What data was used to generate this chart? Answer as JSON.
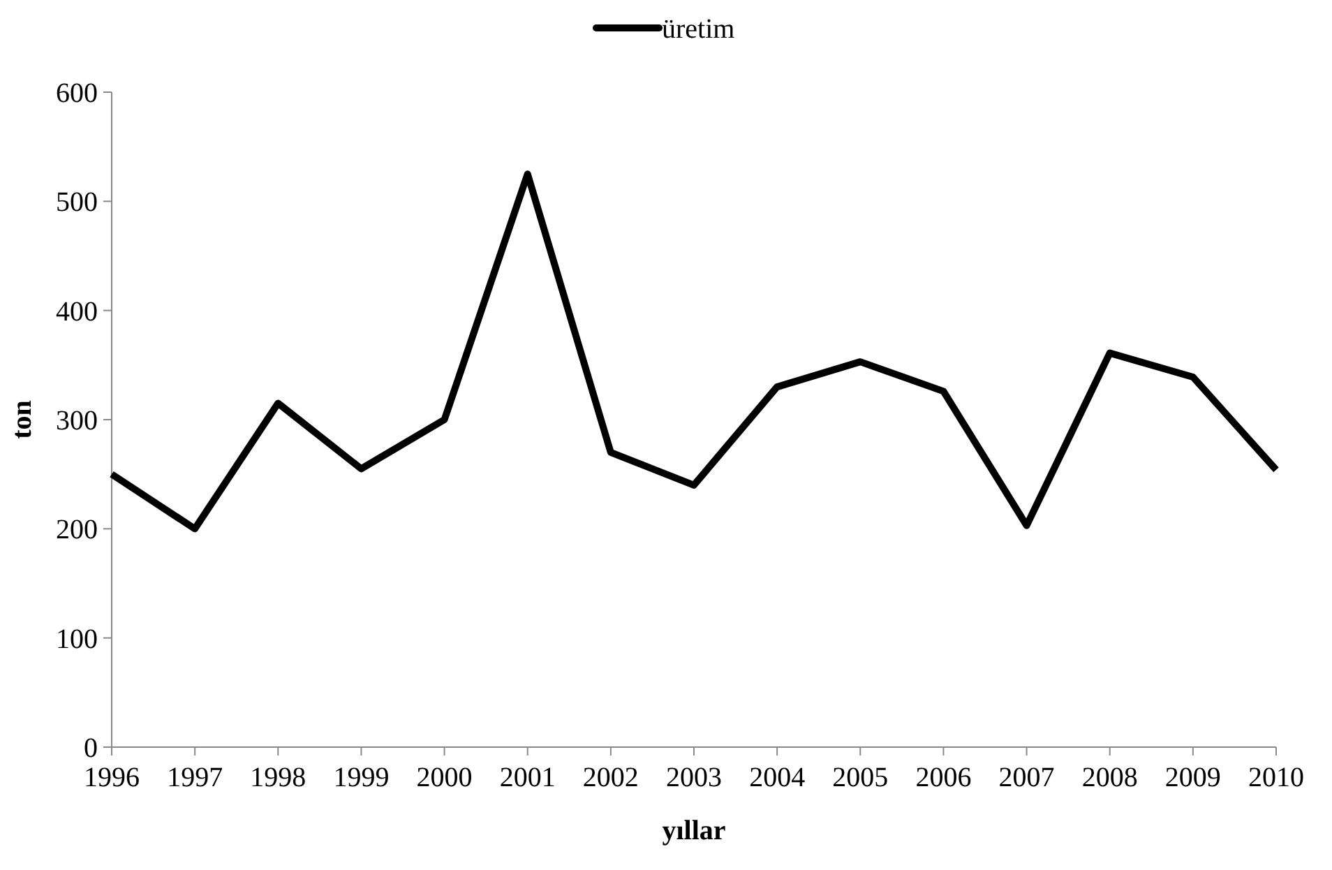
{
  "chart_data": {
    "type": "line",
    "xlabel": "yıllar",
    "ylabel": "ton",
    "categories": [
      "1996",
      "1997",
      "1998",
      "1999",
      "2000",
      "2001",
      "2002",
      "2003",
      "2004",
      "2005",
      "2006",
      "2007",
      "2008",
      "2009",
      "2010"
    ],
    "series": [
      {
        "name": "üretim",
        "color": "#000000",
        "values": [
          250,
          200,
          315,
          255,
          300,
          525,
          270,
          240,
          330,
          353,
          326,
          203,
          361,
          339,
          254
        ]
      }
    ],
    "ylim": [
      0,
      600
    ],
    "yticks": [
      0,
      100,
      200,
      300,
      400,
      500,
      600
    ],
    "grid": false,
    "legend": "top",
    "marker": "none",
    "line_style": "solid"
  }
}
